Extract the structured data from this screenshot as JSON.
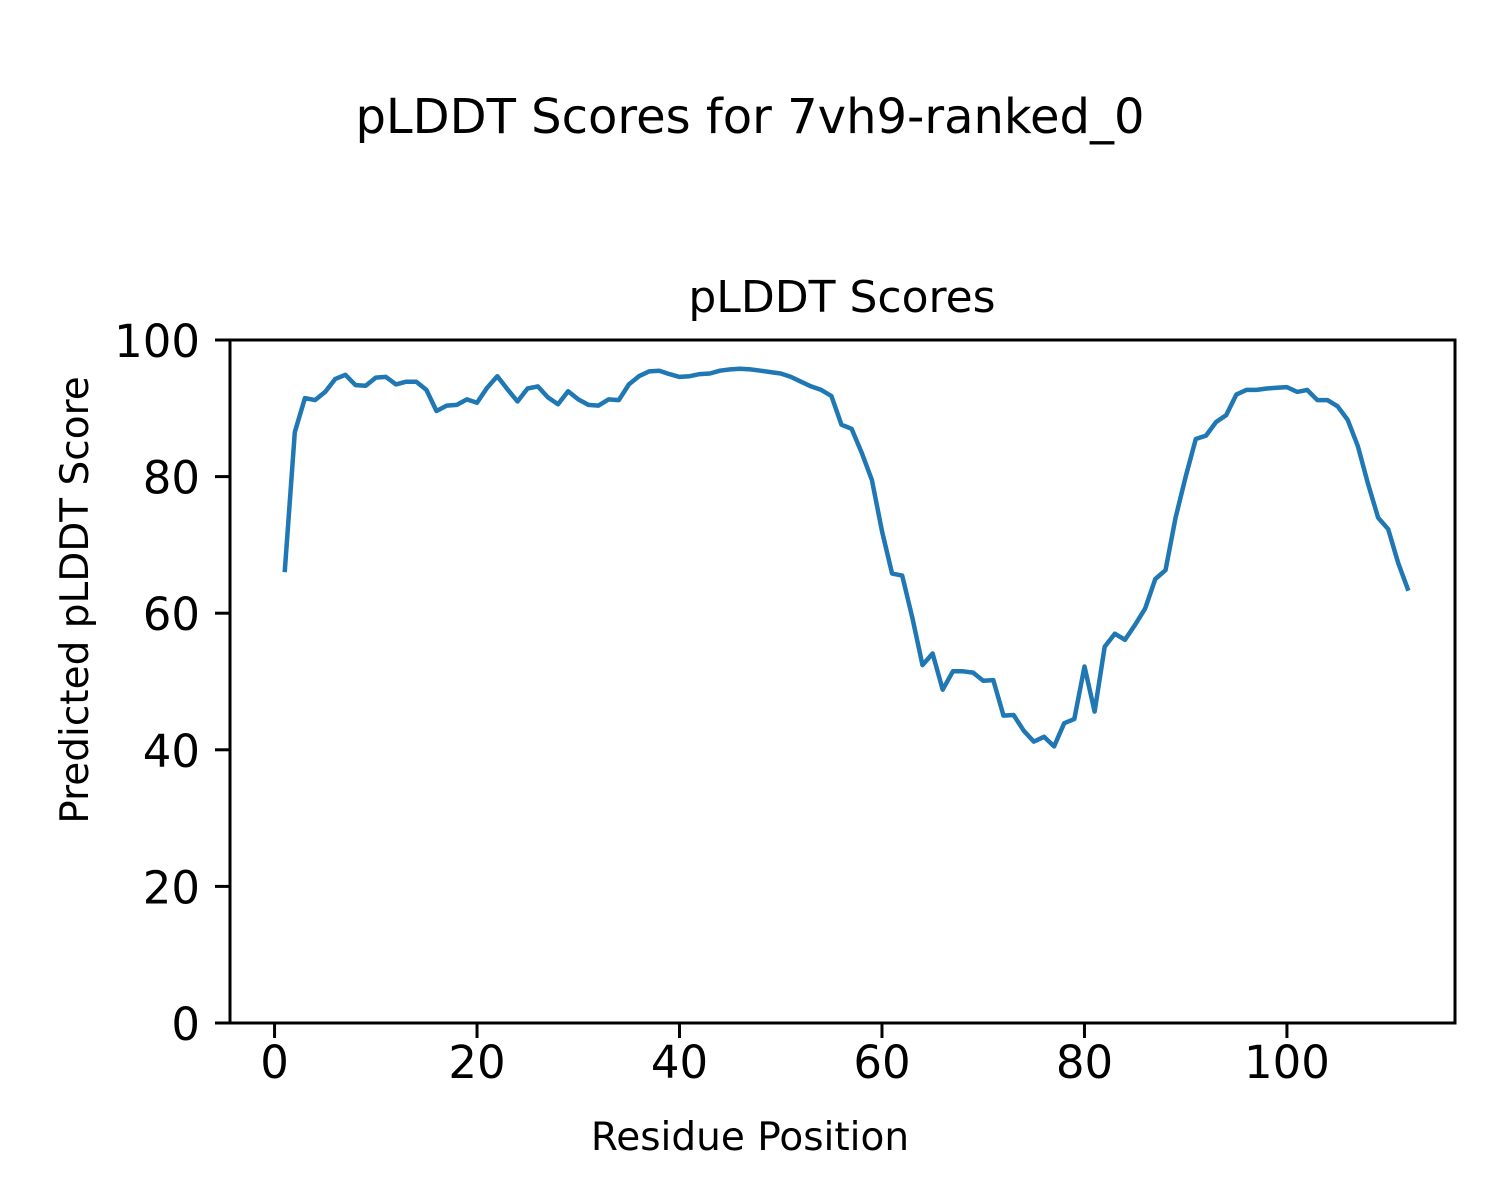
{
  "chart_data": {
    "type": "line",
    "suptitle": "pLDDT Scores for 7vh9-ranked_0",
    "title": "pLDDT Scores",
    "xlabel": "Residue Position",
    "ylabel": "Predicted pLDDT Score",
    "line_color": "#1f77b4",
    "axis_color": "#000000",
    "grid": false,
    "legend": "none",
    "x_start": 1,
    "xlim": [
      -4.4,
      116.6
    ],
    "ylim": [
      0,
      100
    ],
    "x_ticks": [
      0,
      20,
      40,
      60,
      80,
      100
    ],
    "y_ticks": [
      0,
      20,
      40,
      60,
      80,
      100
    ],
    "values": [
      66.0,
      86.5,
      91.5,
      91.2,
      92.4,
      94.3,
      94.9,
      93.4,
      93.3,
      94.5,
      94.6,
      93.5,
      93.9,
      93.9,
      92.7,
      89.6,
      90.4,
      90.5,
      91.3,
      90.8,
      93.0,
      94.7,
      92.8,
      91.0,
      92.9,
      93.2,
      91.6,
      90.6,
      92.5,
      91.3,
      90.5,
      90.4,
      91.3,
      91.2,
      93.5,
      94.7,
      95.4,
      95.5,
      95.0,
      94.6,
      94.7,
      95.0,
      95.1,
      95.5,
      95.7,
      95.8,
      95.7,
      95.5,
      95.3,
      95.1,
      94.6,
      93.9,
      93.2,
      92.7,
      91.8,
      87.6,
      87.0,
      83.5,
      79.5,
      72.0,
      65.8,
      65.5,
      59.3,
      52.4,
      54.1,
      48.8,
      51.5,
      51.5,
      51.3,
      50.1,
      50.2,
      45.0,
      45.1,
      42.8,
      41.2,
      41.9,
      40.5,
      43.9,
      44.5,
      52.2,
      45.6,
      55.1,
      57.0,
      56.1,
      58.3,
      60.7,
      65.0,
      66.3,
      74.0,
      80.0,
      85.5,
      86.0,
      88.0,
      89.0,
      92.0,
      92.7,
      92.7,
      92.9,
      93.0,
      93.1,
      92.4,
      92.7,
      91.2,
      91.2,
      90.3,
      88.3,
      84.5,
      79.0,
      74.0,
      72.3,
      67.3,
      63.3
    ]
  }
}
